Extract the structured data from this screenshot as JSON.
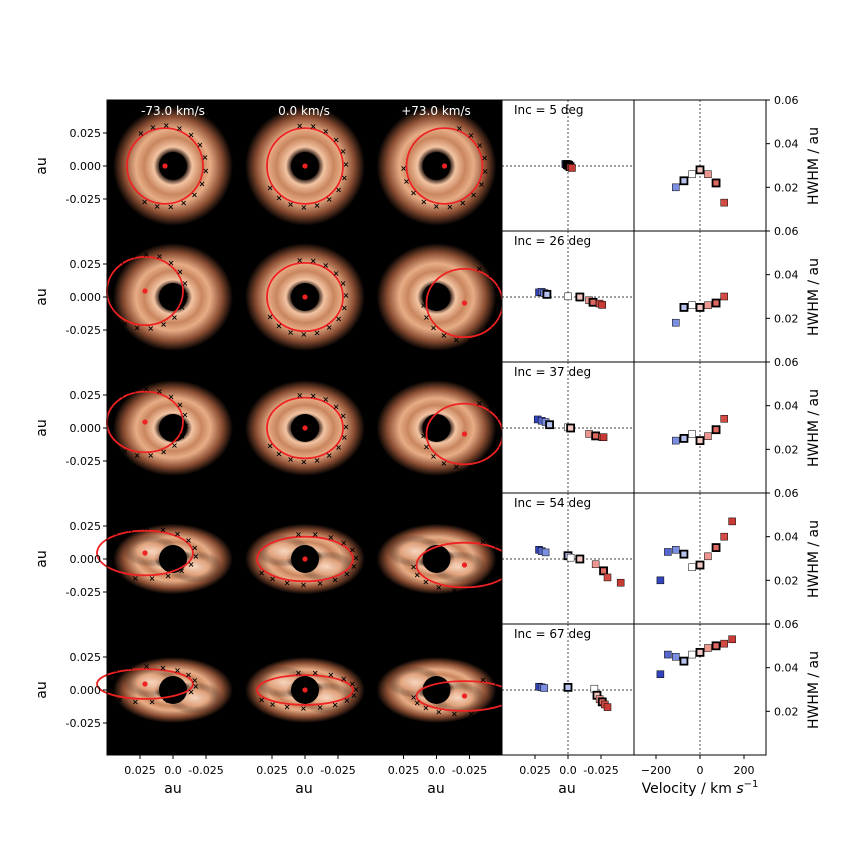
{
  "chart_data": {
    "type": "scatter",
    "velocity_labels": [
      "-73.0 km/s",
      "0.0 km/s",
      "+73.0 km/s"
    ],
    "image_tick_labels": [
      "0.025",
      "0.000",
      "-0.025"
    ],
    "image_xtick_labels": [
      "0.025",
      "0.0",
      "-0.025"
    ],
    "image_axis_label": "au",
    "image_axis_range": [
      0.05,
      -0.05
    ],
    "centroid_xlabel": "au",
    "centroid_xtick_labels": [
      "0.025",
      "0.0",
      "-0.025"
    ],
    "velocity_xlabel": "Velocity / km s⁻¹",
    "velocity_xtick_labels": [
      "−200",
      "0",
      "200"
    ],
    "velocity_xlim": [
      -300,
      300
    ],
    "hwhm_ylabel": "HWHM / au",
    "hwhm_ytick_labels": [
      "0.06",
      "0.04",
      "0.02"
    ],
    "hwhm_ylim": [
      0.0,
      0.06
    ],
    "velocities": [
      -180,
      -146,
      -110,
      -73,
      -36,
      0,
      36,
      73,
      110,
      146
    ],
    "rows": [
      {
        "inc_label": "Inc = 5 deg",
        "centroid_x": [
          0.002,
          0.0015,
          0.001,
          0.0005,
          0.0,
          -0.0005,
          -0.001,
          -0.0015,
          -0.002,
          -0.003
        ],
        "centroid_y": [
          0.0015,
          0.0015,
          0.0015,
          0.001,
          0.0005,
          0.0005,
          0.0,
          -0.0005,
          -0.001,
          -0.0015
        ],
        "hwhm": [
          null,
          null,
          0.02,
          0.023,
          0.026,
          0.028,
          0.026,
          0.022,
          0.013,
          null
        ]
      },
      {
        "inc_label": "Inc = 26 deg",
        "centroid_x": [
          0.022,
          0.02,
          0.018,
          0.016,
          0.0,
          -0.009,
          -0.016,
          -0.019,
          -0.024,
          -0.026
        ],
        "centroid_y": [
          0.0035,
          0.004,
          0.003,
          0.002,
          0.0005,
          0.0,
          -0.0025,
          -0.004,
          -0.005,
          -0.006
        ],
        "hwhm": [
          null,
          null,
          0.018,
          0.025,
          0.026,
          0.025,
          0.026,
          0.027,
          0.03,
          null
        ]
      },
      {
        "inc_label": "Inc = 37 deg",
        "centroid_x": [
          0.023,
          0.02,
          0.017,
          0.014,
          0.0,
          -0.002,
          -0.016,
          -0.021,
          -0.026,
          -0.027
        ],
        "centroid_y": [
          0.0065,
          0.0055,
          0.0045,
          0.0025,
          0.0005,
          0.0,
          -0.0045,
          -0.006,
          -0.007,
          -0.007
        ],
        "hwhm": [
          null,
          null,
          0.024,
          0.025,
          0.027,
          0.024,
          0.026,
          0.029,
          0.034,
          null
        ]
      },
      {
        "inc_label": "Inc = 54 deg",
        "centroid_x": [
          0.022,
          0.02,
          0.017,
          0.0,
          -0.002,
          -0.009,
          -0.021,
          -0.027,
          -0.03,
          -0.04
        ],
        "centroid_y": [
          0.007,
          0.006,
          0.005,
          0.0025,
          0.001,
          0.0,
          -0.004,
          -0.009,
          -0.014,
          -0.018
        ],
        "hwhm": [
          0.02,
          0.033,
          0.034,
          0.032,
          0.026,
          0.027,
          0.031,
          0.035,
          0.04,
          0.047
        ]
      },
      {
        "inc_label": "Inc = 67 deg",
        "centroid_x": [
          0.022,
          0.02,
          0.018,
          0.0,
          -0.02,
          -0.022,
          -0.024,
          -0.026,
          -0.028,
          -0.03
        ],
        "centroid_y": [
          0.0025,
          0.002,
          0.0015,
          0.002,
          0.001,
          -0.004,
          -0.007,
          -0.009,
          -0.011,
          -0.013
        ],
        "hwhm": [
          0.037,
          0.046,
          0.045,
          0.043,
          0.046,
          0.047,
          0.049,
          0.05,
          0.051,
          0.053
        ]
      }
    ]
  },
  "colors": {
    "marker_blue": "#4a78d8",
    "ellipse_red": "#ee2222",
    "disk_glow": "#f0b08a",
    "panel_bg": "#000000"
  }
}
